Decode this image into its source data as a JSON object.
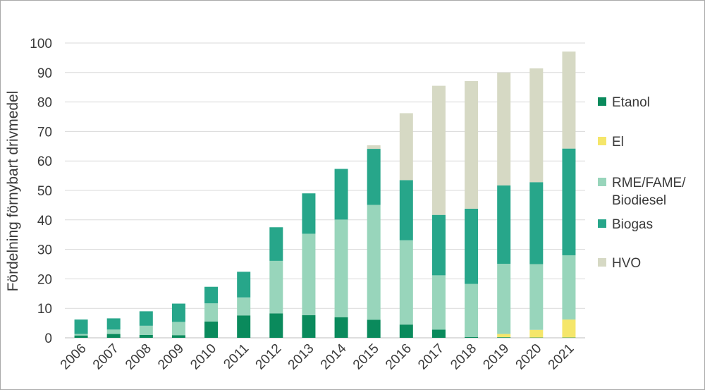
{
  "chart_data": {
    "type": "bar",
    "stacked": true,
    "title": "",
    "xlabel": "",
    "ylabel": "Fördelning förnybart drivmedel",
    "ylim": [
      0,
      100
    ],
    "yticks": [
      "0",
      "10",
      "20",
      "30",
      "40",
      "50",
      "60",
      "70",
      "80",
      "90",
      "100"
    ],
    "grid": true,
    "legend_position": "right",
    "categories": [
      "2006",
      "2007",
      "2008",
      "2009",
      "2010",
      "2011",
      "2012",
      "2013",
      "2014",
      "2015",
      "2016",
      "2017",
      "2018",
      "2019",
      "2020",
      "2021"
    ],
    "series": [
      {
        "name": "Etanol",
        "color": "#0a8a5c",
        "values": [
          0.8,
          1.3,
          1.0,
          0.9,
          5.5,
          7.6,
          8.3,
          7.7,
          7.0,
          6.1,
          4.5,
          2.8,
          0.3,
          0.2,
          0.1,
          0.1
        ]
      },
      {
        "name": "El",
        "color": "#f5e66a",
        "values": [
          0,
          0,
          0,
          0,
          0,
          0,
          0,
          0,
          0,
          0,
          0,
          0,
          0,
          1.1,
          2.6,
          6.1
        ]
      },
      {
        "name": "RME/FAME/\nBiodiesel",
        "color": "#98d5bb",
        "values": [
          0.5,
          1.5,
          3.1,
          4.5,
          6.2,
          6.1,
          17.8,
          27.6,
          33.1,
          39.0,
          28.6,
          18.4,
          18.0,
          23.8,
          22.3,
          21.8
        ]
      },
      {
        "name": "Biogas",
        "color": "#27a68a",
        "values": [
          4.9,
          3.8,
          4.9,
          6.2,
          5.6,
          8.7,
          11.4,
          13.7,
          17.2,
          19.0,
          20.4,
          20.5,
          25.5,
          26.6,
          27.8,
          36.2
        ]
      },
      {
        "name": "HVO",
        "color": "#d6d9c4",
        "values": [
          0,
          0,
          0,
          0,
          0,
          0,
          0,
          0,
          0,
          1.2,
          22.7,
          43.8,
          43.3,
          38.3,
          38.6,
          32.9
        ]
      }
    ]
  }
}
